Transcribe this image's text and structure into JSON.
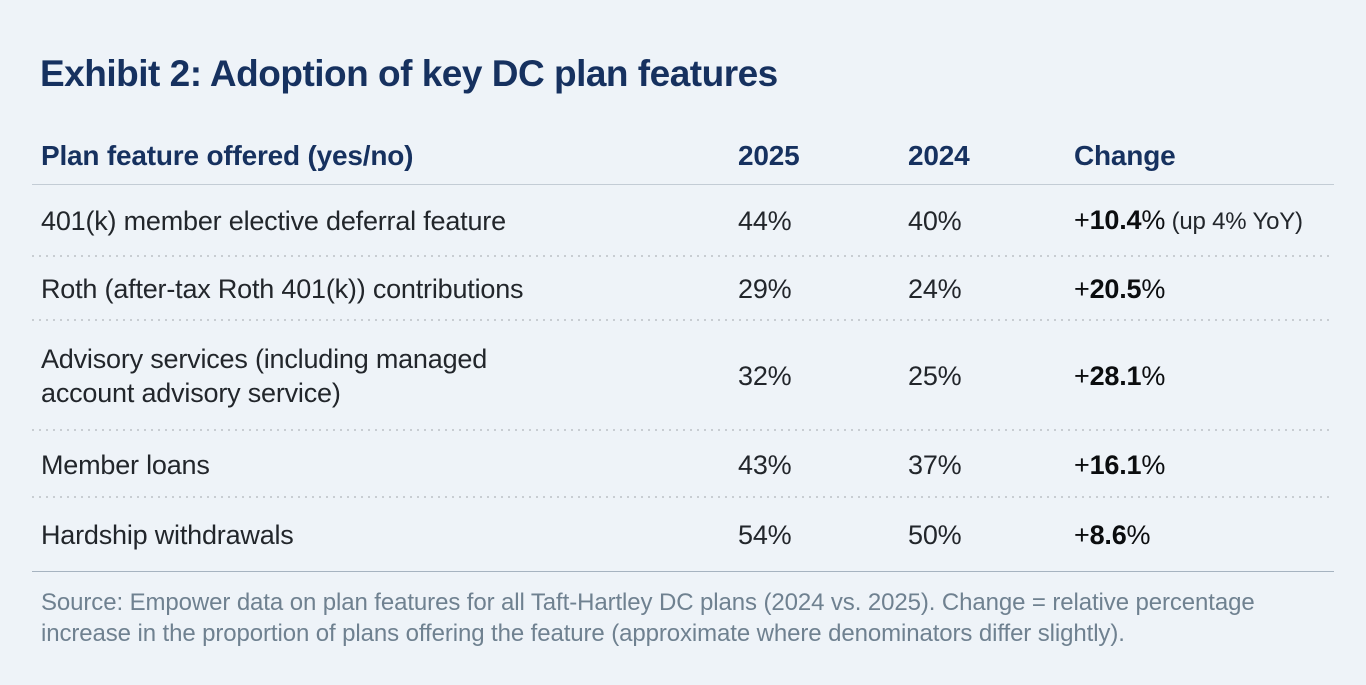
{
  "page": {
    "title": "Exhibit 2: Adoption of key DC plan features",
    "source_note": "Source: Empower data on plan features for all Taft-Hartley DC plans (2024 vs. 2025). Change = relative percentage increase in the proportion of plans offering the feature (approximate where denominators differ slightly)."
  },
  "table": {
    "columns": [
      "Plan feature offered (yes/no)",
      "2025",
      "2024",
      "Change"
    ],
    "rows": [
      {
        "feature": "401(k) member elective deferral feature",
        "v2025": "44%",
        "v2024": "40%",
        "change_sign": "+",
        "change_value": "10.4",
        "change_pct": "%",
        "change_note": " (up 4% YoY)"
      },
      {
        "feature": "Roth (after-tax Roth 401(k)) contributions",
        "v2025": "29%",
        "v2024": "24%",
        "change_sign": "+",
        "change_value": "20.5",
        "change_pct": "%",
        "change_note": ""
      },
      {
        "feature": "Advisory services (including managed account advisory service)",
        "v2025": "32%",
        "v2024": "25%",
        "change_sign": "+",
        "change_value": "28.1",
        "change_pct": "%",
        "change_note": ""
      },
      {
        "feature": "Member loans",
        "v2025": "43%",
        "v2024": "37%",
        "change_sign": "+",
        "change_value": "16.1",
        "change_pct": "%",
        "change_note": ""
      },
      {
        "feature": "Hardship withdrawals",
        "v2025": "54%",
        "v2024": "50%",
        "change_sign": "+",
        "change_value": "8.6",
        "change_pct": "%",
        "change_note": ""
      }
    ]
  },
  "chart_data": {
    "type": "table",
    "title": "Exhibit 2: Adoption of key DC plan features",
    "columns": [
      "Plan feature offered (yes/no)",
      "2025",
      "2024",
      "Change"
    ],
    "rows": [
      [
        "401(k) member elective deferral feature",
        "44%",
        "40%",
        "+10.4% (up 4% YoY)"
      ],
      [
        "Roth (after-tax Roth 401(k)) contributions",
        "29%",
        "24%",
        "+20.5%"
      ],
      [
        "Advisory services (including managed account advisory service)",
        "32%",
        "25%",
        "+28.1%"
      ],
      [
        "Member loans",
        "43%",
        "37%",
        "+16.1%"
      ],
      [
        "Hardship withdrawals",
        "54%",
        "50%",
        "+8.6%"
      ]
    ],
    "numeric": {
      "categories": [
        "401(k) member elective deferral feature",
        "Roth (after-tax Roth 401(k)) contributions",
        "Advisory services (including managed account advisory service)",
        "Member loans",
        "Hardship withdrawals"
      ],
      "series": [
        {
          "name": "2025",
          "values": [
            44,
            29,
            32,
            43,
            54
          ],
          "unit": "%"
        },
        {
          "name": "2024",
          "values": [
            40,
            24,
            25,
            37,
            50
          ],
          "unit": "%"
        },
        {
          "name": "Change",
          "values": [
            10.4,
            20.5,
            28.1,
            16.1,
            8.6
          ],
          "unit": "% relative increase"
        }
      ]
    },
    "source": "Source: Empower data on plan features for all Taft-Hartley DC plans (2024 vs. 2025). Change = relative percentage increase in the proportion of plans offering the feature (approximate where denominators differ slightly)."
  },
  "colors": {
    "background": "#eef3f8",
    "heading_navy": "#16315f",
    "body_text": "#22262b",
    "bold_change": "#0b0d0f",
    "source_text": "#6f8190",
    "header_rule": "#c3ccd5",
    "dotted_rule": "#c8cdd2",
    "footer_rule": "#a6b3c0"
  }
}
